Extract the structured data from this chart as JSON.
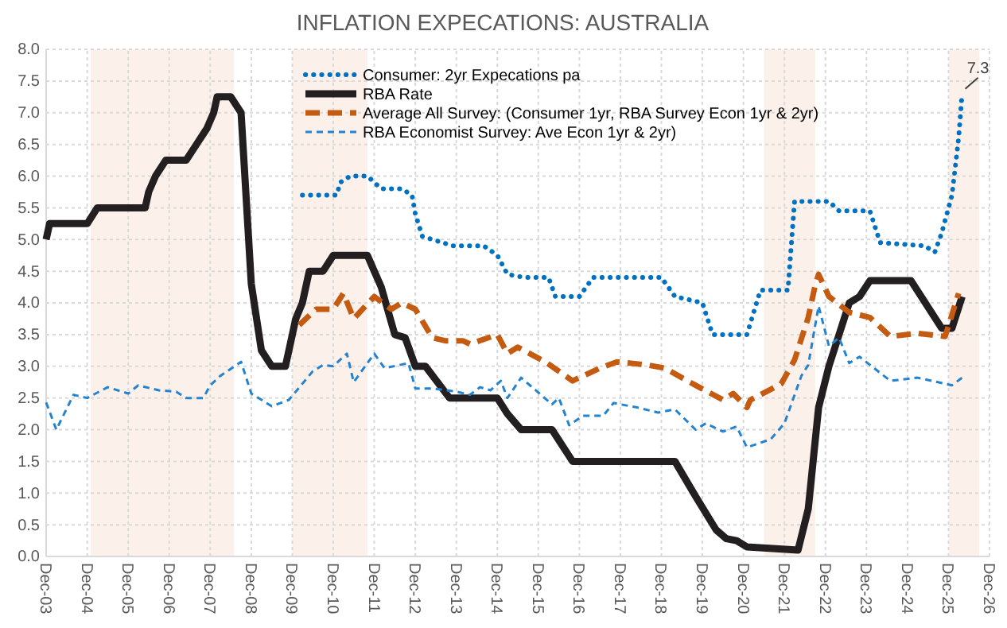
{
  "chart_data": {
    "type": "line",
    "title": "INFLATION EXPECATIONS: AUSTRALIA",
    "xlim": [
      "2003-12",
      "2026-12"
    ],
    "xticks": [
      {
        "value": "2003-12",
        "label": "Dec-03"
      },
      {
        "value": "2004-12",
        "label": "Dec-04"
      },
      {
        "value": "2005-12",
        "label": "Dec-05"
      },
      {
        "value": "2006-12",
        "label": "Dec-06"
      },
      {
        "value": "2007-12",
        "label": "Dec-07"
      },
      {
        "value": "2008-12",
        "label": "Dec-08"
      },
      {
        "value": "2009-12",
        "label": "Dec-09"
      },
      {
        "value": "2010-12",
        "label": "Dec-10"
      },
      {
        "value": "2011-12",
        "label": "Dec-11"
      },
      {
        "value": "2012-12",
        "label": "Dec-12"
      },
      {
        "value": "2013-12",
        "label": "Dec-13"
      },
      {
        "value": "2014-12",
        "label": "Dec-14"
      },
      {
        "value": "2015-12",
        "label": "Dec-15"
      },
      {
        "value": "2016-12",
        "label": "Dec-16"
      },
      {
        "value": "2017-12",
        "label": "Dec-17"
      },
      {
        "value": "2018-12",
        "label": "Dec-18"
      },
      {
        "value": "2019-12",
        "label": "Dec-19"
      },
      {
        "value": "2020-12",
        "label": "Dec-20"
      },
      {
        "value": "2021-12",
        "label": "Dec-21"
      },
      {
        "value": "2022-12",
        "label": "Dec-22"
      },
      {
        "value": "2023-12",
        "label": "Dec-23"
      },
      {
        "value": "2024-12",
        "label": "Dec-24"
      },
      {
        "value": "2025-12",
        "label": "Dec-25"
      },
      {
        "value": "2026-12",
        "label": "Dec-26"
      }
    ],
    "ylim": [
      0,
      8
    ],
    "yticks": [
      {
        "value": 0,
        "label": "0.0"
      },
      {
        "value": 0.5,
        "label": "0.5"
      },
      {
        "value": 1,
        "label": "1.0"
      },
      {
        "value": 1.5,
        "label": "1.5"
      },
      {
        "value": 2,
        "label": "2.0"
      },
      {
        "value": 2.5,
        "label": "2.5"
      },
      {
        "value": 3,
        "label": "3.0"
      },
      {
        "value": 3.5,
        "label": "3.5"
      },
      {
        "value": 4,
        "label": "4.0"
      },
      {
        "value": 4.5,
        "label": "4.5"
      },
      {
        "value": 5,
        "label": "5.0"
      },
      {
        "value": 5.5,
        "label": "5.5"
      },
      {
        "value": 6,
        "label": "6.0"
      },
      {
        "value": 6.5,
        "label": "6.5"
      },
      {
        "value": 7,
        "label": "7.0"
      },
      {
        "value": 7.5,
        "label": "7.5"
      },
      {
        "value": 8,
        "label": "8.0"
      }
    ],
    "grid": true,
    "legend": "top",
    "bands": [
      {
        "axis": "x",
        "from": "2005-01",
        "to": "2008-07",
        "color": "#fcf1ea"
      },
      {
        "axis": "x",
        "from": "2009-12",
        "to": "2011-10",
        "color": "#fcf1ea"
      },
      {
        "axis": "x",
        "from": "2021-06",
        "to": "2022-09",
        "color": "#fcf1ea"
      },
      {
        "axis": "x",
        "from": "2025-12",
        "to": "2026-09",
        "color": "#fcf1ea"
      }
    ],
    "annotations": [
      {
        "text": "7.3",
        "x": "2026-04",
        "y": 7.3
      }
    ],
    "series": [
      {
        "name": "Consumer:  2yr Expecations pa",
        "color": "#0070c0",
        "line_style": "dotted",
        "x": [
          "2010-03",
          "2011-01",
          "2011-02",
          "2011-05",
          "2011-10",
          "2011-12",
          "2012-02",
          "2012-08",
          "2012-11",
          "2012-12",
          "2013-02",
          "2013-05",
          "2013-11",
          "2014-08",
          "2014-12",
          "2015-03",
          "2015-08",
          "2016-03",
          "2016-05",
          "2016-12",
          "2017-04",
          "2018-12",
          "2019-04",
          "2019-12",
          "2020-03",
          "2021-01",
          "2021-05",
          "2022-01",
          "2022-03",
          "2023-01",
          "2023-04",
          "2024-01",
          "2024-04",
          "2025-05",
          "2025-08",
          "2025-10",
          "2026-01",
          "2026-03",
          "2026-04"
        ],
        "values": [
          5.7,
          5.7,
          5.9,
          6.0,
          6.0,
          5.9,
          5.8,
          5.8,
          5.7,
          5.4,
          5.05,
          5.0,
          4.9,
          4.9,
          4.75,
          4.45,
          4.4,
          4.4,
          4.1,
          4.1,
          4.4,
          4.4,
          4.1,
          4.0,
          3.5,
          3.5,
          4.2,
          4.2,
          5.6,
          5.6,
          5.45,
          5.45,
          4.95,
          4.9,
          4.8,
          5.1,
          5.7,
          6.6,
          7.3
        ]
      },
      {
        "name": "RBA Rate",
        "color": "#231f20",
        "line_style": "solid",
        "x": [
          "2003-12",
          "2004-01",
          "2004-12",
          "2005-03",
          "2006-05",
          "2006-06",
          "2006-08",
          "2006-11",
          "2007-05",
          "2007-08",
          "2007-11",
          "2008-01",
          "2008-02",
          "2008-06",
          "2008-09",
          "2008-12",
          "2009-03",
          "2009-06",
          "2009-10",
          "2009-11",
          "2010-01",
          "2010-03",
          "2010-05",
          "2010-09",
          "2010-12",
          "2011-10",
          "2011-12",
          "2012-02",
          "2012-06",
          "2012-09",
          "2012-12",
          "2013-03",
          "2013-10",
          "2014-12",
          "2015-03",
          "2015-07",
          "2016-04",
          "2016-10",
          "2019-04",
          "2019-10",
          "2020-04",
          "2020-07",
          "2020-10",
          "2021-01",
          "2022-04",
          "2022-07",
          "2022-10",
          "2023-01",
          "2023-07",
          "2023-10",
          "2024-01",
          "2025-01",
          "2025-10",
          "2026-01",
          "2026-04"
        ],
        "values": [
          5.0,
          5.25,
          5.25,
          5.5,
          5.5,
          5.75,
          6.0,
          6.25,
          6.25,
          6.5,
          6.75,
          7.0,
          7.25,
          7.25,
          7.0,
          4.3,
          3.25,
          3.0,
          3.0,
          3.25,
          3.75,
          4.0,
          4.5,
          4.5,
          4.75,
          4.75,
          4.5,
          4.25,
          3.5,
          3.45,
          3.0,
          3.0,
          2.5,
          2.5,
          2.25,
          2.0,
          2.0,
          1.5,
          1.5,
          0.95,
          0.42,
          0.28,
          0.25,
          0.15,
          0.1,
          0.75,
          2.35,
          3.0,
          4.0,
          4.1,
          4.35,
          4.35,
          3.6,
          3.6,
          4.1
        ]
      },
      {
        "name": "Average All Survey: (Consumer 1yr,  RBA Survey Econ 1yr & 2yr)",
        "color": "#c55a11",
        "line_style": "dashed",
        "x": [
          "2010-02",
          "2010-07",
          "2010-12",
          "2011-03",
          "2011-06",
          "2011-12",
          "2012-05",
          "2012-08",
          "2012-12",
          "2013-05",
          "2013-09",
          "2014-02",
          "2014-04",
          "2014-12",
          "2015-03",
          "2015-06",
          "2016-02",
          "2016-10",
          "2017-06",
          "2017-11",
          "2018-08",
          "2019-01",
          "2019-10",
          "2020-06",
          "2020-09",
          "2021-01",
          "2021-02",
          "2021-11",
          "2022-03",
          "2022-07",
          "2022-09",
          "2022-10",
          "2023-01",
          "2023-07",
          "2024-01",
          "2024-07",
          "2025-03",
          "2025-11",
          "2026-03"
        ],
        "values": [
          3.65,
          3.9,
          3.9,
          4.15,
          3.75,
          4.1,
          3.9,
          4.0,
          3.9,
          3.45,
          3.4,
          3.4,
          3.35,
          3.5,
          3.2,
          3.3,
          3.07,
          2.77,
          2.97,
          3.07,
          3.02,
          2.97,
          2.7,
          2.47,
          2.57,
          2.35,
          2.47,
          2.72,
          3.1,
          3.77,
          4.28,
          4.45,
          4.1,
          3.85,
          3.77,
          3.47,
          3.52,
          3.47,
          4.15
        ]
      },
      {
        "name": "RBA Economist Survey: Ave Econ 1yr & 2yr)",
        "color": "#2383d0",
        "line_style": "dashed",
        "x": [
          "2003-12",
          "2004-03",
          "2004-08",
          "2004-12",
          "2005-06",
          "2005-12",
          "2006-03",
          "2006-09",
          "2007-02",
          "2007-05",
          "2007-10",
          "2007-12",
          "2008-03",
          "2008-09",
          "2008-12",
          "2009-06",
          "2009-11",
          "2010-06",
          "2010-09",
          "2010-12",
          "2011-04",
          "2011-06",
          "2011-12",
          "2012-03",
          "2012-10",
          "2012-12",
          "2013-05",
          "2013-12",
          "2014-04",
          "2014-07",
          "2014-10",
          "2015-01",
          "2015-03",
          "2015-07",
          "2016-04",
          "2016-06",
          "2016-09",
          "2017-01",
          "2017-07",
          "2017-10",
          "2018-05",
          "2018-11",
          "2019-04",
          "2019-10",
          "2020-01",
          "2020-06",
          "2020-10",
          "2021-01",
          "2021-08",
          "2021-12",
          "2022-05",
          "2022-07",
          "2022-10",
          "2023-01",
          "2023-04",
          "2023-07",
          "2023-10",
          "2024-07",
          "2025-03",
          "2026-01",
          "2026-04"
        ],
        "values": [
          2.43,
          2.0,
          2.55,
          2.5,
          2.67,
          2.57,
          2.7,
          2.62,
          2.6,
          2.5,
          2.5,
          2.7,
          2.85,
          3.07,
          2.57,
          2.37,
          2.47,
          2.92,
          3.02,
          3.0,
          3.2,
          2.75,
          3.2,
          2.97,
          3.05,
          2.65,
          2.65,
          2.6,
          2.55,
          2.67,
          2.62,
          2.77,
          2.5,
          2.82,
          2.4,
          2.5,
          2.07,
          2.22,
          2.22,
          2.42,
          2.35,
          2.27,
          2.32,
          2.0,
          2.1,
          1.97,
          2.05,
          1.72,
          1.85,
          2.1,
          2.85,
          3.02,
          3.95,
          3.32,
          3.45,
          3.05,
          3.15,
          2.77,
          2.82,
          2.7,
          2.82
        ]
      }
    ]
  }
}
